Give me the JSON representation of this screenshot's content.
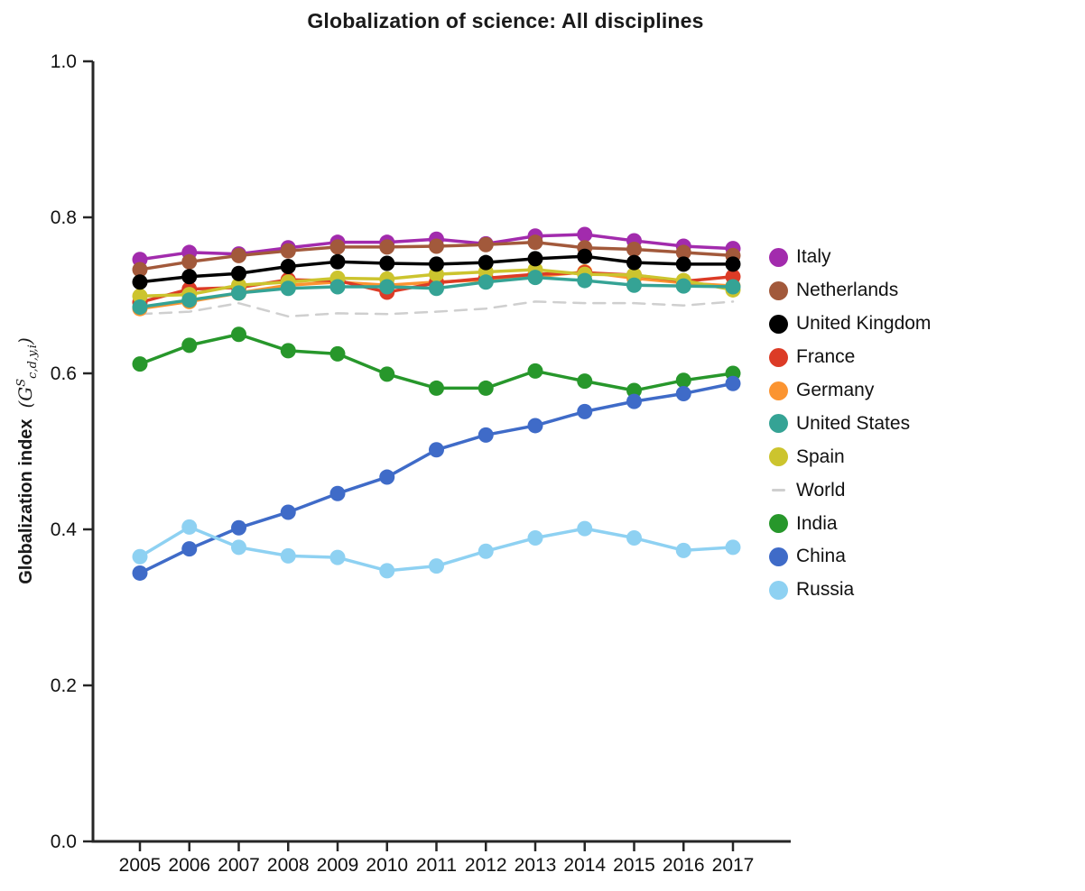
{
  "title": "Globalization of science: All disciplines",
  "ylabel": {
    "text": "Globalization index",
    "math": {
      "open": "(",
      "symbol": "G",
      "sup": "S",
      "sub": "c,d,y,i",
      "close": ")"
    }
  },
  "chart_data": {
    "type": "line",
    "x": [
      2005,
      2006,
      2007,
      2008,
      2009,
      2010,
      2011,
      2012,
      2013,
      2014,
      2015,
      2016,
      2017
    ],
    "xlabel": "",
    "ylabel": "Globalization index (G^S_c,d,y,i)",
    "ylim": [
      0.0,
      1.0
    ],
    "y_ticks": [
      0.0,
      0.2,
      0.4,
      0.6,
      0.8,
      1.0
    ],
    "y_tick_labels": [
      "0.0",
      "0.2",
      "0.4",
      "0.6",
      "0.8",
      "1.0"
    ],
    "grid": false,
    "legend_position": "right",
    "axis_color": "#262626",
    "tick_label_color": "#111111",
    "series": [
      {
        "name": "Italy",
        "color": "#a22bad",
        "style": "solid",
        "marker": true,
        "values": [
          0.746,
          0.755,
          0.753,
          0.761,
          0.768,
          0.768,
          0.772,
          0.766,
          0.776,
          0.778,
          0.77,
          0.763,
          0.76
        ]
      },
      {
        "name": "Netherlands",
        "color": "#a2593b",
        "style": "solid",
        "marker": true,
        "values": [
          0.733,
          0.743,
          0.751,
          0.757,
          0.762,
          0.762,
          0.763,
          0.765,
          0.768,
          0.761,
          0.759,
          0.755,
          0.751
        ]
      },
      {
        "name": "United Kingdom",
        "color": "#000000",
        "style": "solid",
        "marker": true,
        "values": [
          0.717,
          0.724,
          0.728,
          0.737,
          0.743,
          0.741,
          0.74,
          0.742,
          0.747,
          0.75,
          0.742,
          0.74,
          0.74
        ]
      },
      {
        "name": "France",
        "color": "#dc3b26",
        "style": "solid",
        "marker": true,
        "values": [
          0.691,
          0.708,
          0.71,
          0.72,
          0.719,
          0.704,
          0.716,
          0.722,
          0.727,
          0.729,
          0.726,
          0.718,
          0.724
        ]
      },
      {
        "name": "Germany",
        "color": "#fb9431",
        "style": "solid",
        "marker": true,
        "values": [
          0.683,
          0.692,
          0.703,
          0.713,
          0.717,
          0.713,
          0.717,
          0.72,
          0.724,
          0.73,
          0.722,
          0.716,
          0.712
        ]
      },
      {
        "name": "United States",
        "color": "#35a395",
        "style": "solid",
        "marker": true,
        "values": [
          0.685,
          0.694,
          0.703,
          0.709,
          0.711,
          0.711,
          0.709,
          0.717,
          0.723,
          0.719,
          0.713,
          0.712,
          0.711
        ]
      },
      {
        "name": "Spain",
        "color": "#ccc42e",
        "style": "solid",
        "marker": true,
        "values": [
          0.699,
          0.701,
          0.713,
          0.717,
          0.722,
          0.721,
          0.727,
          0.73,
          0.733,
          0.727,
          0.726,
          0.719,
          0.707
        ]
      },
      {
        "name": "World",
        "color": "#cfcfcf",
        "style": "dashed",
        "marker": false,
        "values": [
          0.676,
          0.679,
          0.69,
          0.673,
          0.677,
          0.676,
          0.679,
          0.683,
          0.692,
          0.69,
          0.69,
          0.687,
          0.692
        ]
      },
      {
        "name": "India",
        "color": "#27972b",
        "style": "solid",
        "marker": true,
        "values": [
          0.612,
          0.636,
          0.65,
          0.629,
          0.625,
          0.599,
          0.581,
          0.581,
          0.603,
          0.59,
          0.578,
          0.591,
          0.6
        ]
      },
      {
        "name": "China",
        "color": "#3f6bc8",
        "style": "solid",
        "marker": true,
        "values": [
          0.344,
          0.375,
          0.402,
          0.422,
          0.446,
          0.467,
          0.502,
          0.521,
          0.533,
          0.551,
          0.564,
          0.574,
          0.587
        ]
      },
      {
        "name": "Russia",
        "color": "#8ed1f2",
        "style": "solid",
        "marker": true,
        "values": [
          0.365,
          0.403,
          0.377,
          0.366,
          0.364,
          0.347,
          0.353,
          0.372,
          0.389,
          0.401,
          0.389,
          0.373,
          0.377
        ]
      }
    ]
  }
}
